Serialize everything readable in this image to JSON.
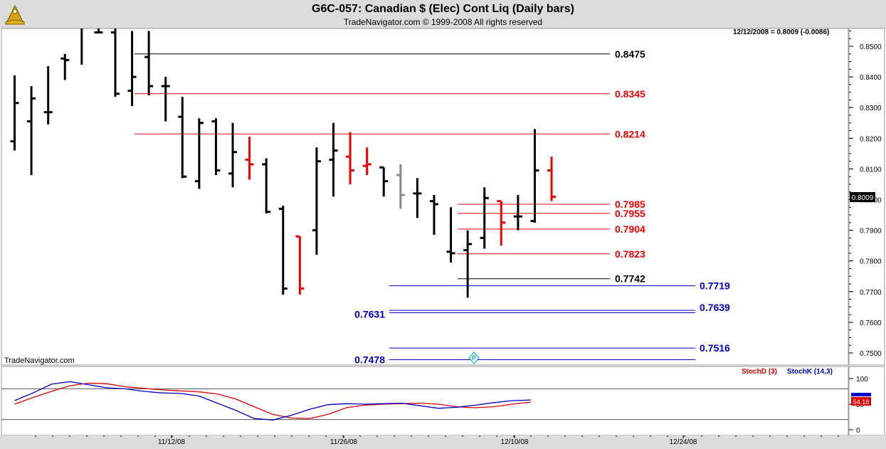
{
  "header": {
    "title": "G6C-057:  Canadian $ (Elec) Cont Liq  (Daily bars)",
    "subtitle": "TradeNavigator.com © 1999-2008 All rights reserved"
  },
  "watermark": "TradeNavigator.com",
  "quote_box": "12/12/2008 = 0.8009 (-0.0086)",
  "last_price": "0.8009",
  "colors": {
    "up": "#000000",
    "down": "#ee0000",
    "neutral": "#888888",
    "fib": "#0000cc",
    "stoch_d": "#dd0000",
    "stoch_k": "#0000cc"
  },
  "chart_data": [
    {
      "type": "ohlc",
      "title": "Canadian $ (Elec) Cont Liq (Daily bars)",
      "price_scale": [
        "0.8500",
        "0.8400",
        "0.8300",
        "0.8200",
        "0.8100",
        "0.8000",
        "0.7900",
        "0.7800",
        "0.7700",
        "0.7600",
        "0.7500"
      ],
      "ylim": [
        0.7465,
        0.8555
      ],
      "date_labels": [
        "11/12/08",
        "11/26/08",
        "12/10/08",
        "12/24/08"
      ],
      "bars": [
        {
          "o": 0.819,
          "h": 0.8405,
          "l": 0.816,
          "c": 0.8315,
          "color": "up"
        },
        {
          "o": 0.8255,
          "h": 0.837,
          "l": 0.808,
          "c": 0.833,
          "color": "up"
        },
        {
          "o": 0.8285,
          "h": 0.8435,
          "l": 0.8245,
          "c": 0.8285,
          "color": "up"
        },
        {
          "o": 0.846,
          "h": 0.8475,
          "l": 0.839,
          "c": 0.8455,
          "color": "up"
        },
        {
          "o": 0.859,
          "h": 0.864,
          "l": 0.844,
          "c": 0.859,
          "color": "up"
        },
        {
          "o": 0.8545,
          "h": 0.864,
          "l": 0.8545,
          "c": 0.8545,
          "color": "up"
        },
        {
          "o": 0.8545,
          "h": 0.856,
          "l": 0.8335,
          "c": 0.8345,
          "color": "up"
        },
        {
          "o": 0.8355,
          "h": 0.855,
          "l": 0.8305,
          "c": 0.84,
          "color": "up"
        },
        {
          "o": 0.8465,
          "h": 0.855,
          "l": 0.834,
          "c": 0.837,
          "color": "up"
        },
        {
          "o": 0.837,
          "h": 0.84,
          "l": 0.8255,
          "c": 0.837,
          "color": "up"
        },
        {
          "o": 0.827,
          "h": 0.8335,
          "l": 0.807,
          "c": 0.8075,
          "color": "up"
        },
        {
          "o": 0.806,
          "h": 0.8265,
          "l": 0.8035,
          "c": 0.825,
          "color": "up"
        },
        {
          "o": 0.8255,
          "h": 0.8265,
          "l": 0.808,
          "c": 0.8095,
          "color": "up"
        },
        {
          "o": 0.8085,
          "h": 0.825,
          "l": 0.804,
          "c": 0.8155,
          "color": "up"
        },
        {
          "o": 0.813,
          "h": 0.8205,
          "l": 0.8065,
          "c": 0.8115,
          "color": "down"
        },
        {
          "o": 0.8115,
          "h": 0.8135,
          "l": 0.7955,
          "c": 0.796,
          "color": "up"
        },
        {
          "o": 0.797,
          "h": 0.798,
          "l": 0.769,
          "c": 0.771,
          "color": "up"
        },
        {
          "o": 0.788,
          "h": 0.788,
          "l": 0.769,
          "c": 0.771,
          "color": "down"
        },
        {
          "o": 0.79,
          "h": 0.817,
          "l": 0.782,
          "c": 0.8125,
          "color": "up"
        },
        {
          "o": 0.813,
          "h": 0.825,
          "l": 0.801,
          "c": 0.816,
          "color": "up"
        },
        {
          "o": 0.814,
          "h": 0.822,
          "l": 0.805,
          "c": 0.8095,
          "color": "down"
        },
        {
          "o": 0.811,
          "h": 0.817,
          "l": 0.808,
          "c": 0.8115,
          "color": "down"
        },
        {
          "o": 0.8105,
          "h": 0.8105,
          "l": 0.801,
          "c": 0.806,
          "color": "up"
        },
        {
          "o": 0.808,
          "h": 0.8115,
          "l": 0.797,
          "c": 0.8015,
          "color": "neutral"
        },
        {
          "o": 0.802,
          "h": 0.807,
          "l": 0.794,
          "c": 0.802,
          "color": "up"
        },
        {
          "o": 0.7995,
          "h": 0.8015,
          "l": 0.7885,
          "c": 0.7985,
          "color": "up"
        },
        {
          "o": 0.783,
          "h": 0.7975,
          "l": 0.7795,
          "c": 0.7825,
          "color": "up"
        },
        {
          "o": 0.7835,
          "h": 0.79,
          "l": 0.768,
          "c": 0.7855,
          "color": "up"
        },
        {
          "o": 0.7875,
          "h": 0.804,
          "l": 0.784,
          "c": 0.8005,
          "color": "up"
        },
        {
          "o": 0.7995,
          "h": 0.7995,
          "l": 0.785,
          "c": 0.7925,
          "color": "down"
        },
        {
          "o": 0.7945,
          "h": 0.8015,
          "l": 0.79,
          "c": 0.7945,
          "color": "up"
        },
        {
          "o": 0.793,
          "h": 0.823,
          "l": 0.7925,
          "c": 0.8095,
          "color": "up"
        },
        {
          "o": 0.8095,
          "h": 0.814,
          "l": 0.7995,
          "c": 0.8009,
          "color": "down"
        }
      ],
      "levels": [
        {
          "value": 0.8475,
          "label": "0.8475",
          "color": "#000000"
        },
        {
          "value": 0.8345,
          "label": "0.8345",
          "color": "#ee0000"
        },
        {
          "value": 0.8214,
          "label": "0.8214",
          "color": "#ee0000"
        },
        {
          "value": 0.7985,
          "label": "0.7985",
          "color": "#ee0000"
        },
        {
          "value": 0.7955,
          "label": "0.7955",
          "color": "#ee0000"
        },
        {
          "value": 0.7904,
          "label": "0.7904",
          "color": "#ee0000"
        },
        {
          "value": 0.7823,
          "label": "0.7823",
          "color": "#ee0000"
        },
        {
          "value": 0.7742,
          "label": "0.7742",
          "color": "#000000"
        },
        {
          "value": 0.7719,
          "label": "0.7719",
          "color": "#0000cc"
        },
        {
          "value": 0.7639,
          "label": "0.7639",
          "color": "#0000cc"
        },
        {
          "value": 0.7631,
          "label": "0.7631",
          "color": "#0000cc"
        },
        {
          "value": 0.7516,
          "label": "0.7516",
          "color": "#0000cc"
        },
        {
          "value": 0.7478,
          "label": "0.7478",
          "color": "#0000cc"
        }
      ]
    },
    {
      "type": "line",
      "title": "StochD (3) / StochK (14,3)",
      "scale": [
        "100",
        "50",
        "0"
      ],
      "ylim": [
        -5,
        110
      ],
      "last_value_label": "54.18",
      "series": [
        {
          "name": "StochD (3)",
          "color": "#dd0000",
          "values": [
            50,
            63,
            75,
            86,
            91,
            90,
            84,
            81,
            78,
            76,
            74,
            70,
            60,
            45,
            30,
            23,
            22,
            30,
            43,
            48,
            50,
            51,
            52,
            50,
            45,
            43,
            45,
            50,
            54
          ]
        },
        {
          "name": "StochK (14,3)",
          "color": "#0000cc",
          "values": [
            57,
            72,
            89,
            94,
            88,
            82,
            80,
            75,
            72,
            71,
            66,
            52,
            38,
            22,
            19,
            28,
            40,
            49,
            51,
            50,
            51,
            52,
            47,
            42,
            44,
            48,
            53,
            57,
            58
          ]
        }
      ]
    }
  ],
  "legend": {
    "stoch_d": "StochD (3)",
    "stoch_k": "StochK (14,3)"
  },
  "stoch_scale_top_label": "100",
  "stoch_scale_bottom_label": "0"
}
